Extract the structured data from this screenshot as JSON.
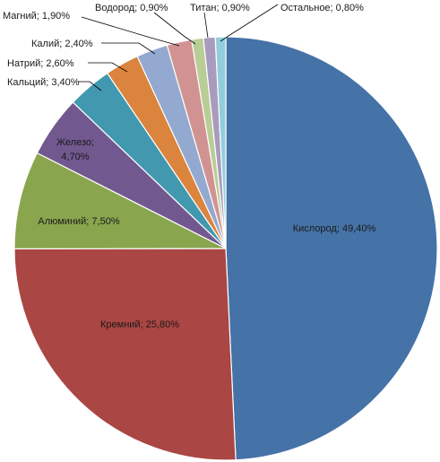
{
  "chart_data": {
    "type": "pie",
    "title": "",
    "slices": [
      {
        "label": "Кислород; 49,40%",
        "name": "Кислород",
        "value": 49.4,
        "color": "#4572A7"
      },
      {
        "label": "Кремний; 25,80%",
        "name": "Кремний",
        "value": 25.8,
        "color": "#AA4643"
      },
      {
        "label": "Алюминий; 7,50%",
        "name": "Алюминий",
        "value": 7.5,
        "color": "#89A54E"
      },
      {
        "label": "Железо; 4,70%",
        "name": "Железо",
        "value": 4.7,
        "color": "#71588F"
      },
      {
        "label": "Кальций; 3,40%",
        "name": "Кальций",
        "value": 3.4,
        "color": "#4198AF"
      },
      {
        "label": "Натрий; 2,60%",
        "name": "Натрий",
        "value": 2.6,
        "color": "#DB843D"
      },
      {
        "label": "Калий; 2,40%",
        "name": "Калий",
        "value": 2.4,
        "color": "#93A9CF"
      },
      {
        "label": "Магний; 1,90%",
        "name": "Магний",
        "value": 1.9,
        "color": "#D19392"
      },
      {
        "label": "Водород; 0,90%",
        "name": "Водород",
        "value": 0.9,
        "color": "#B9CD96"
      },
      {
        "label": "Титан; 0,90%",
        "name": "Титан",
        "value": 0.9,
        "color": "#A99BBD"
      },
      {
        "label": "Остальное; 0,80%",
        "name": "Остальное",
        "value": 0.8,
        "color": "#92CDDC"
      }
    ]
  }
}
